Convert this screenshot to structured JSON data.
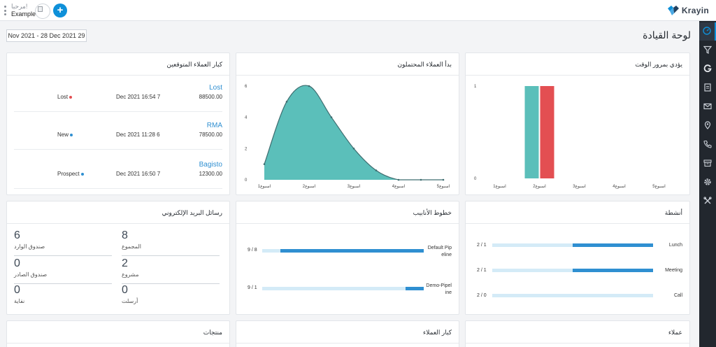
{
  "header": {
    "greeting": "مرحبا!",
    "user_name": "Example",
    "add_symbol": "+",
    "brand": "Krayin"
  },
  "sidebar": {
    "items": [
      {
        "icon": "dashboard-icon",
        "active": true
      },
      {
        "icon": "filter-icon",
        "active": false
      },
      {
        "icon": "google-icon",
        "active": false
      },
      {
        "icon": "document-icon",
        "active": false
      },
      {
        "icon": "mail-icon",
        "active": false
      },
      {
        "icon": "location-pin-icon",
        "active": false
      },
      {
        "icon": "phone-icon",
        "active": false
      },
      {
        "icon": "archive-icon",
        "active": false
      },
      {
        "icon": "settings-icon",
        "active": false
      },
      {
        "icon": "tools-icon",
        "active": false
      }
    ]
  },
  "page": {
    "title": "لوحة القيادة",
    "date_range": "Nov 2021 - 28 Dec 2021 29"
  },
  "colors": {
    "accent": "#0e90d9",
    "teal": "#5bbfba",
    "red": "#e34f52",
    "bar_blue": "#2f8fd1",
    "bar_track": "#d4ebf7",
    "sidebar_bg": "#22272e"
  },
  "top_leads": {
    "title": "كبار العملاء المتوقعين",
    "rows": [
      {
        "name": "Lost",
        "amount": "88500.00",
        "date": "Dec 2021 16:54 7",
        "status": "Lost",
        "status_color": "#e34f52"
      },
      {
        "name": "RMA",
        "amount": "78500.00",
        "date": "Dec 2021 11:28 6",
        "status": "New",
        "status_color": "#2f8fd1"
      },
      {
        "name": "Bagisto",
        "amount": "12300.00",
        "date": "Dec 2021 16:50 7",
        "status": "Prospect",
        "status_color": "#2f8fd1"
      }
    ]
  },
  "potential_clients": {
    "title": "بدأ العملاء المحتملون"
  },
  "leads_over_time": {
    "title": "يؤدي بمرور الوقت"
  },
  "emails": {
    "title": "رسائل البريد الإلكتروني",
    "cells": [
      {
        "value": "6",
        "label": "صندوق الوارد"
      },
      {
        "value": "8",
        "label": "المجموع"
      },
      {
        "value": "0",
        "label": "صندوق الصادر"
      },
      {
        "value": "2",
        "label": "مشروع"
      },
      {
        "value": "0",
        "label": "نفاية"
      },
      {
        "value": "0",
        "label": "أرسلت"
      }
    ]
  },
  "pipelines": {
    "title": "خطوط الأنابيب",
    "rows": [
      {
        "name_line1": "Default Pip",
        "name_line2": "eline",
        "count": "9 / 8",
        "fraction": 0.889
      },
      {
        "name_line1": "Demo-Pipel",
        "name_line2": "ine",
        "count": "9 / 1",
        "fraction": 0.111
      }
    ]
  },
  "activities": {
    "title": "أنشطة",
    "rows": [
      {
        "name": "Lunch",
        "count": "2 / 1",
        "fraction": 0.5
      },
      {
        "name": "Meeting",
        "count": "2 / 1",
        "fraction": 0.5
      },
      {
        "name": "Call",
        "count": "2 / 0",
        "fraction": 0
      }
    ]
  },
  "bottom_cards": {
    "products": "منتجات",
    "top_customers": "كبار العملاء",
    "customers": "عملاء"
  },
  "chart_data": [
    {
      "type": "area",
      "title": "بدأ العملاء المحتملون",
      "categories": [
        "اسبوع1",
        "اسبوع2",
        "اسبوع3",
        "اسبوع4",
        "اسبوع5"
      ],
      "x": [
        0,
        0.5,
        1,
        1.5,
        2,
        2.5,
        3,
        3.5,
        4
      ],
      "values": [
        1,
        5,
        6,
        4,
        2,
        0.6,
        0,
        0,
        0
      ],
      "ylim": [
        0,
        6
      ],
      "yticks": [
        0,
        2,
        4,
        6
      ]
    },
    {
      "type": "bar",
      "title": "يؤدي بمرور الوقت",
      "categories": [
        "اسبوع1",
        "اسبوع2",
        "اسبوع3",
        "اسبوع4",
        "اسبوع5"
      ],
      "series": [
        {
          "color": "#5bbfba",
          "values": [
            0,
            1,
            0,
            0,
            0
          ]
        },
        {
          "color": "#e34f52",
          "values": [
            0,
            1,
            0,
            0,
            0
          ]
        }
      ],
      "ylim": [
        0,
        1
      ],
      "yticks": [
        0,
        1
      ]
    }
  ]
}
